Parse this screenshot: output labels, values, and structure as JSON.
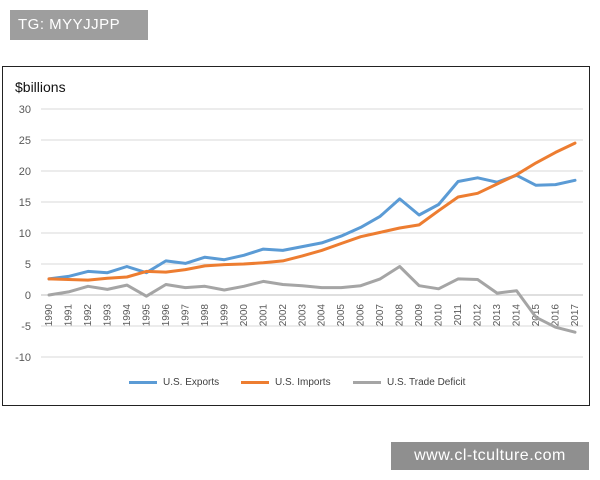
{
  "badge": {
    "text": "TG: MYYJJPP"
  },
  "watermark": {
    "text": "www.cl-tculture.com"
  },
  "chart_data": {
    "type": "line",
    "title": "",
    "ylabel": "$billions",
    "xlabel": "",
    "ylim": [
      -10,
      30
    ],
    "yticks": [
      -10,
      -5,
      0,
      5,
      10,
      15,
      20,
      25,
      30
    ],
    "grid": true,
    "legend_position": "bottom",
    "categories": [
      "1990",
      "1991",
      "1992",
      "1993",
      "1994",
      "1995",
      "1996",
      "1997",
      "1998",
      "1999",
      "2000",
      "2001",
      "2002",
      "2003",
      "2004",
      "2005",
      "2006",
      "2007",
      "2008",
      "2009",
      "2010",
      "2011",
      "2012",
      "2013",
      "2014",
      "2015",
      "2016",
      "2017"
    ],
    "series": [
      {
        "name": "U.S. Exports",
        "color": "#5b9bd5",
        "values": [
          2.6,
          3.0,
          3.8,
          3.6,
          4.6,
          3.6,
          5.5,
          5.1,
          6.1,
          5.7,
          6.4,
          7.4,
          7.2,
          7.8,
          8.4,
          9.5,
          10.9,
          12.7,
          15.5,
          12.9,
          14.6,
          18.3,
          18.9,
          18.2,
          19.3,
          17.7,
          17.8,
          18.5
        ]
      },
      {
        "name": "U.S. Imports",
        "color": "#ed7d31",
        "values": [
          2.6,
          2.5,
          2.4,
          2.7,
          2.9,
          3.8,
          3.7,
          4.1,
          4.7,
          4.9,
          5.0,
          5.2,
          5.5,
          6.3,
          7.2,
          8.3,
          9.4,
          10.1,
          10.8,
          11.3,
          13.6,
          15.8,
          16.4,
          17.9,
          19.4,
          21.3,
          23.0,
          24.5
        ]
      },
      {
        "name": "U.S. Trade Deficit",
        "color": "#a5a5a5",
        "values": [
          0.0,
          0.5,
          1.4,
          0.9,
          1.6,
          -0.2,
          1.7,
          1.2,
          1.4,
          0.8,
          1.4,
          2.2,
          1.7,
          1.5,
          1.2,
          1.2,
          1.5,
          2.6,
          4.6,
          1.5,
          1.0,
          2.6,
          2.5,
          0.3,
          0.7,
          -3.6,
          -5.2,
          -6.0
        ]
      }
    ]
  }
}
